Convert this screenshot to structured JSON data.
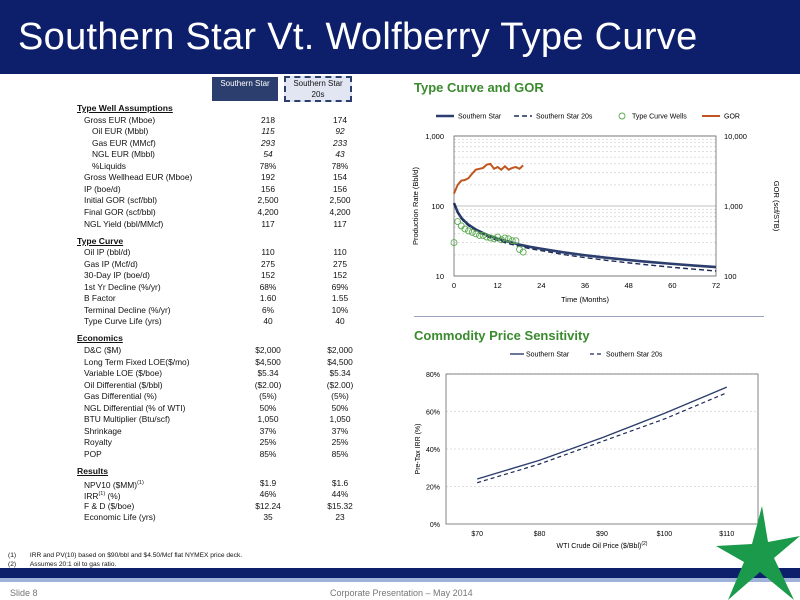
{
  "title": "Southern Star Vt. Wolfberry Type Curve",
  "columns": [
    "Southern Star",
    "Southern Star 20s"
  ],
  "sections": [
    {
      "heading": "Type Well Assumptions",
      "rows": [
        {
          "label": "Gross EUR (Mboe)",
          "indent": 1,
          "v1": "218",
          "v2": "174"
        },
        {
          "label": "Oil EUR (Mbbl)",
          "indent": 2,
          "v1": "115",
          "v2": "92",
          "italic": true
        },
        {
          "label": "Gas EUR (MMcf)",
          "indent": 2,
          "v1": "293",
          "v2": "233",
          "italic": true
        },
        {
          "label": "NGL EUR (Mbbl)",
          "indent": 2,
          "v1": "54",
          "v2": "43",
          "italic": true
        },
        {
          "label": "%Liquids",
          "indent": 2,
          "v1": "78%",
          "v2": "78%"
        },
        {
          "label": "Gross Wellhead EUR (Mboe)",
          "indent": 1,
          "v1": "192",
          "v2": "154"
        },
        {
          "label": "IP (boe/d)",
          "indent": 1,
          "v1": "156",
          "v2": "156"
        },
        {
          "label": "Initial GOR (scf/bbl)",
          "indent": 1,
          "v1": "2,500",
          "v2": "2,500"
        },
        {
          "label": "Final GOR (scf/bbl)",
          "indent": 1,
          "v1": "4,200",
          "v2": "4,200"
        },
        {
          "label": "NGL Yield (bbl/MMcf)",
          "indent": 1,
          "v1": "117",
          "v2": "117"
        }
      ]
    },
    {
      "heading": "Type Curve",
      "rows": [
        {
          "label": "Oil IP (bbl/d)",
          "indent": 1,
          "v1": "110",
          "v2": "110"
        },
        {
          "label": "Gas IP (Mcf/d)",
          "indent": 1,
          "v1": "275",
          "v2": "275"
        },
        {
          "label": "30-Day IP (boe/d)",
          "indent": 1,
          "v1": "152",
          "v2": "152"
        },
        {
          "label": "1st Yr Decline (%/yr)",
          "indent": 1,
          "v1": "68%",
          "v2": "69%"
        },
        {
          "label": "B Factor",
          "indent": 1,
          "v1": "1.60",
          "v2": "1.55"
        },
        {
          "label": "Terminal Decline (%/yr)",
          "indent": 1,
          "v1": "6%",
          "v2": "10%"
        },
        {
          "label": "Type Curve Life (yrs)",
          "indent": 1,
          "v1": "40",
          "v2": "40"
        }
      ]
    },
    {
      "heading": "Economics",
      "rows": [
        {
          "label": "D&C ($M)",
          "indent": 1,
          "v1": "$2,000",
          "v2": "$2,000"
        },
        {
          "label": "Long Term Fixed LOE($/mo)",
          "indent": 1,
          "v1": "$4,500",
          "v2": "$4,500"
        },
        {
          "label": "Variable LOE ($/boe)",
          "indent": 1,
          "v1": "$5.34",
          "v2": "$5.34"
        },
        {
          "label": "Oil Differential ($/bbl)",
          "indent": 1,
          "v1": "($2.00)",
          "v2": "($2.00)"
        },
        {
          "label": "Gas Differential (%)",
          "indent": 1,
          "v1": "(5%)",
          "v2": "(5%)"
        },
        {
          "label": "NGL Differential (% of WTI)",
          "indent": 1,
          "v1": "50%",
          "v2": "50%"
        },
        {
          "label": "BTU Multiplier (Btu/scf)",
          "indent": 1,
          "v1": "1,050",
          "v2": "1,050"
        },
        {
          "label": "Shrinkage",
          "indent": 1,
          "v1": "37%",
          "v2": "37%"
        },
        {
          "label": "Royalty",
          "indent": 1,
          "v1": "25%",
          "v2": "25%"
        },
        {
          "label": "POP",
          "indent": 1,
          "v1": "85%",
          "v2": "85%"
        }
      ]
    },
    {
      "heading": "Results",
      "rows": [
        {
          "label": "NPV10 ($MM)",
          "sup": "(1)",
          "indent": 1,
          "v1": "$1.9",
          "v2": "$1.6"
        },
        {
          "label": "IRR",
          "sup": "(1)",
          "after": " (%)",
          "indent": 1,
          "v1": "46%",
          "v2": "44%"
        },
        {
          "label": "F & D ($/boe)",
          "indent": 1,
          "v1": "$12.24",
          "v2": "$15.32"
        },
        {
          "label": "Economic Life (yrs)",
          "indent": 1,
          "v1": "35",
          "v2": "23"
        }
      ]
    }
  ],
  "footnotes": [
    {
      "num": "(1)",
      "text": "IRR and PV(10) based on $90/bbl and $4.50/Mcf flat NYMEX price deck."
    },
    {
      "num": "(2)",
      "text": "Assumes 20:1 oil to gas ratio."
    }
  ],
  "footer": {
    "slide": "Slide 8",
    "presentation": "Corporate Presentation – May 2014"
  },
  "colors": {
    "navy": "#0d1f6b",
    "accent_green": "#3a8a2e",
    "gor_orange": "#c0561e",
    "wells_green": "#5aaa4e"
  },
  "chart_data": [
    {
      "type": "line",
      "title": "Type Curve and GOR",
      "xlabel": "Time (Months)",
      "ylabel": "Production Rate (Bbl/d)",
      "y2label": "GOR (scf/STB)",
      "xlim": [
        0,
        72
      ],
      "xticks": [
        0,
        12,
        24,
        36,
        48,
        60,
        72
      ],
      "ylim": [
        10,
        1000
      ],
      "yscale": "log",
      "yticks": [
        "10",
        "100",
        "1,000"
      ],
      "y2lim": [
        100,
        10000
      ],
      "y2scale": "log",
      "y2ticks": [
        "100",
        "1,000",
        "10,000"
      ],
      "legend": [
        "Southern Star",
        "Southern Star 20s",
        "Type Curve Wells",
        "GOR"
      ],
      "legend_position": "top",
      "series": [
        {
          "name": "Southern Star",
          "style": "solid",
          "x": [
            0,
            1,
            2,
            3,
            4,
            6,
            8,
            10,
            12,
            15,
            18,
            21,
            24,
            30,
            36,
            42,
            48,
            54,
            60,
            66,
            72
          ],
          "y": [
            110,
            82,
            68,
            60,
            54,
            46,
            41,
            37,
            34,
            31,
            28,
            26,
            24.5,
            21.8,
            19.8,
            18.2,
            16.9,
            15.8,
            14.9,
            14.1,
            13.4
          ]
        },
        {
          "name": "Southern Star 20s",
          "style": "dashed",
          "x": [
            0,
            1,
            2,
            3,
            4,
            6,
            8,
            10,
            12,
            15,
            18,
            21,
            24,
            30,
            36,
            42,
            48,
            54,
            60,
            66,
            72
          ],
          "y": [
            110,
            80,
            66,
            58,
            52,
            44,
            39,
            35,
            32,
            29,
            26.5,
            24.5,
            23,
            20.3,
            18.3,
            16.7,
            15.4,
            14.3,
            13.3,
            12.5,
            11.8
          ]
        },
        {
          "name": "Type Curve Wells",
          "style": "markers",
          "x": [
            0,
            1,
            2,
            3,
            4,
            5,
            6,
            7,
            8,
            9,
            10,
            11,
            12,
            13,
            14,
            15,
            16,
            17,
            18,
            19
          ],
          "y": [
            30,
            60,
            52,
            47,
            44,
            42,
            40,
            38,
            38,
            36,
            35,
            34,
            36,
            33,
            35,
            34,
            32,
            32,
            24,
            22
          ]
        },
        {
          "name": "GOR",
          "style": "solid",
          "axis": "y2",
          "x": [
            0,
            1,
            2,
            3,
            4,
            5,
            6,
            7,
            8,
            9,
            10,
            11,
            12,
            13,
            14,
            15,
            16,
            17,
            18,
            19
          ],
          "y": [
            1500,
            2000,
            2300,
            2350,
            2500,
            2900,
            3300,
            3400,
            3500,
            3900,
            4000,
            3400,
            3600,
            3300,
            3700,
            3300,
            3500,
            3600,
            3400,
            3800
          ]
        }
      ]
    },
    {
      "type": "line",
      "title": "Commodity Price Sensitivity",
      "xlabel": "WTI Crude Oil Price ($/Bbl)",
      "xlabel_sup": "(2)",
      "ylabel": "Pre-Tax IRR (%)",
      "categories": [
        "$70",
        "$80",
        "$90",
        "$100",
        "$110"
      ],
      "ylim": [
        0,
        80
      ],
      "yticks": [
        "0%",
        "20%",
        "40%",
        "60%",
        "80%"
      ],
      "legend": [
        "Southern Star",
        "Southern Star 20s"
      ],
      "legend_position": "top",
      "series": [
        {
          "name": "Southern Star",
          "style": "solid",
          "values": [
            24,
            34,
            46,
            59,
            73
          ]
        },
        {
          "name": "Southern Star 20s",
          "style": "dashed",
          "values": [
            22,
            32,
            44,
            56,
            70
          ]
        }
      ]
    }
  ]
}
